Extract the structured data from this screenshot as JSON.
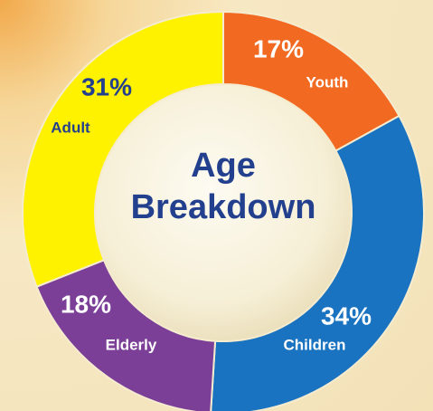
{
  "chart_data": {
    "type": "donut",
    "title": "Age Breakdown",
    "categories": [
      "Youth",
      "Children",
      "Elderly",
      "Adult"
    ],
    "values": [
      17,
      34,
      18,
      31
    ],
    "value_labels": [
      "17%",
      "34%",
      "18%",
      "31%"
    ],
    "colors": [
      "#f26a21",
      "#1a73c0",
      "#7c3f98",
      "#fff200"
    ]
  }
}
